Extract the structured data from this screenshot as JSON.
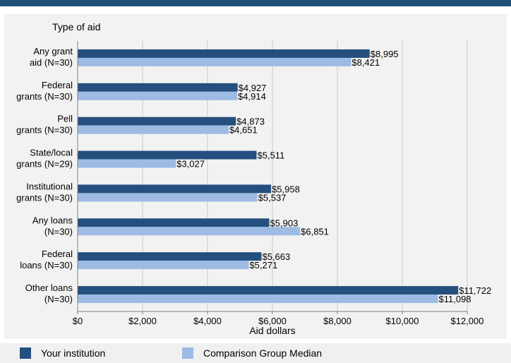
{
  "chart_data": {
    "type": "bar",
    "orientation": "horizontal",
    "title": "Type of aid",
    "xlabel": "Aid dollars",
    "ylabel": "",
    "xlim": [
      0,
      12000
    ],
    "x_ticks": [
      0,
      2000,
      4000,
      6000,
      8000,
      10000,
      12000
    ],
    "x_tick_labels": [
      "$0",
      "$2,000",
      "$4,000",
      "$6,000",
      "$8,000",
      "$10,000",
      "$12,000"
    ],
    "grid": "vertical",
    "categories": [
      [
        "Any grant",
        "aid (N=30)"
      ],
      [
        "Federal",
        "grants (N=30)"
      ],
      [
        "Pell",
        "grants (N=30)"
      ],
      [
        "State/local",
        "grants (N=29)"
      ],
      [
        "Institutional",
        "grants (N=30)"
      ],
      [
        "Any loans",
        "(N=30)"
      ],
      [
        "Federal",
        "loans (N=30)"
      ],
      [
        "Other loans",
        "(N=30)"
      ]
    ],
    "series": [
      {
        "name": "Your institution",
        "color": "#244f7e",
        "values": [
          8995,
          4927,
          4873,
          5511,
          5958,
          5903,
          5663,
          11722
        ],
        "labels": [
          "$8,995",
          "$4,927",
          "$4,873",
          "$5,511",
          "$5,958",
          "$5,903",
          "$5,663",
          "$11,722"
        ]
      },
      {
        "name": "Comparison Group Median",
        "color": "#9dbbe3",
        "values": [
          8421,
          4914,
          4651,
          3027,
          5537,
          6851,
          5271,
          11098
        ],
        "labels": [
          "$8,421",
          "$4,914",
          "$4,651",
          "$3,027",
          "$5,537",
          "$6,851",
          "$5,271",
          "$11,098"
        ]
      }
    ],
    "legend_position": "bottom"
  }
}
